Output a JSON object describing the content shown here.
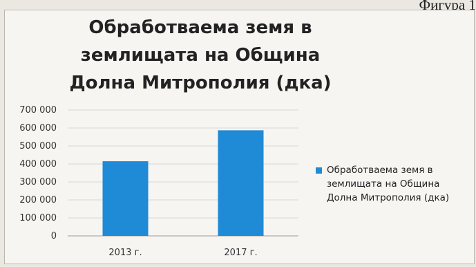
{
  "figure_label": "Фигура 1",
  "chart_data": {
    "type": "bar",
    "title": "Обработваема земя в землищата на Община Долна Митрополия (дка)",
    "categories": [
      "2013 г.",
      "2017 г."
    ],
    "series": [
      {
        "name": "Обработваема земя в землищата на Община Долна Митрополия (дка)",
        "values": [
          415000,
          587000
        ],
        "color": "#1f8ad6"
      }
    ],
    "ylim": [
      0,
      700000
    ],
    "yticks": [
      "0",
      "100 000",
      "200 000",
      "300 000",
      "400 000",
      "500 000",
      "600 000",
      "700 000"
    ],
    "grid": true,
    "legend": "right",
    "xlabel": "",
    "ylabel": ""
  }
}
